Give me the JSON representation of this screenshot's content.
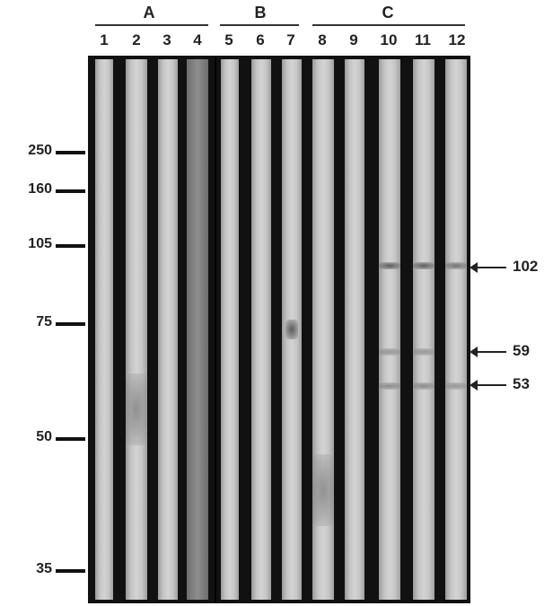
{
  "groups": [
    {
      "label": "A",
      "lanes": [
        "1",
        "2",
        "3",
        "4"
      ]
    },
    {
      "label": "B",
      "lanes": [
        "5",
        "6",
        "7"
      ]
    },
    {
      "label": "C",
      "lanes": [
        "8",
        "9",
        "10",
        "11",
        "12"
      ]
    }
  ],
  "markers": [
    "250",
    "160",
    "105",
    "75",
    "50",
    "35"
  ],
  "band_labels": [
    "102",
    "59",
    "53"
  ]
}
